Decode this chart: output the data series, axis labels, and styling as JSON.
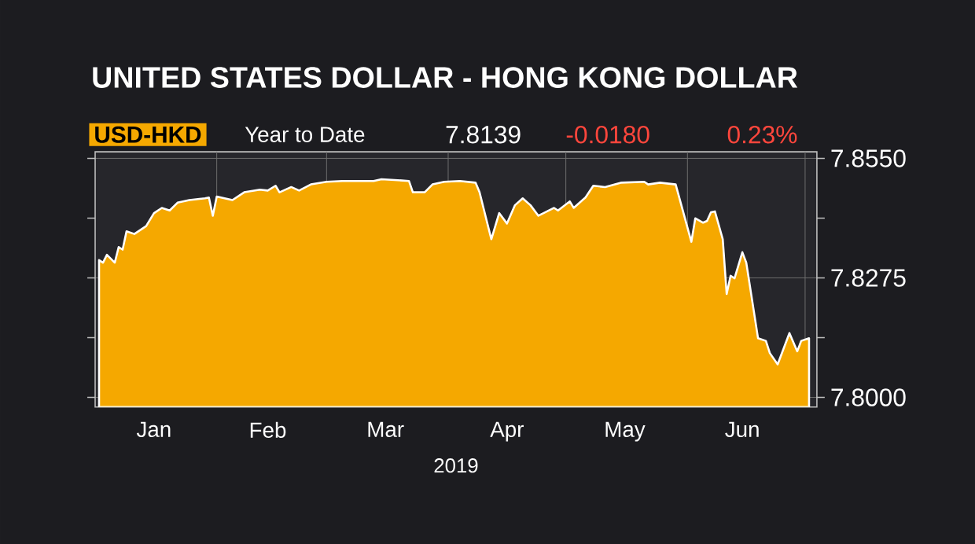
{
  "chart_data": {
    "type": "area",
    "title": "UNITED STATES DOLLAR - HONG KONG DOLLAR",
    "subtitle": "USD-HKD",
    "annotations": [
      "Year to Date",
      "7.8139",
      "-0.0180",
      "0.23%"
    ],
    "xlabel": "2019",
    "x": [
      "2019-01-02",
      "2019-01-03",
      "2019-01-04",
      "2019-01-06",
      "2019-01-07",
      "2019-01-08",
      "2019-01-09",
      "2019-01-11",
      "2019-01-14",
      "2019-01-16",
      "2019-01-18",
      "2019-01-20",
      "2019-01-22",
      "2019-01-25",
      "2019-01-29",
      "2019-01-30",
      "2019-01-31",
      "2019-02-01",
      "2019-02-05",
      "2019-02-08",
      "2019-02-12",
      "2019-02-14",
      "2019-02-16",
      "2019-02-17",
      "2019-02-20",
      "2019-02-22",
      "2019-02-25",
      "2019-03-01",
      "2019-03-05",
      "2019-03-13",
      "2019-03-15",
      "2019-03-22",
      "2019-03-23",
      "2019-03-26",
      "2019-03-28",
      "2019-03-31",
      "2019-04-04",
      "2019-04-08",
      "2019-04-09",
      "2019-04-10",
      "2019-04-12",
      "2019-04-14",
      "2019-04-16",
      "2019-04-18",
      "2019-04-20",
      "2019-04-22",
      "2019-04-24",
      "2019-04-28",
      "2019-04-29",
      "2019-05-02",
      "2019-05-03",
      "2019-05-06",
      "2019-05-08",
      "2019-05-11",
      "2019-05-15",
      "2019-05-21",
      "2019-05-22",
      "2019-05-25",
      "2019-05-29",
      "2019-05-31",
      "2019-06-02",
      "2019-06-03",
      "2019-06-05",
      "2019-06-06",
      "2019-06-07",
      "2019-06-08",
      "2019-06-10",
      "2019-06-11",
      "2019-06-12",
      "2019-06-13",
      "2019-06-15",
      "2019-06-16",
      "2019-06-19",
      "2019-06-21",
      "2019-06-22",
      "2019-06-24",
      "2019-06-27",
      "2019-06-29",
      "2019-06-30",
      "2019-07-02"
    ],
    "series": [
      {
        "color": "#f5a800",
        "values": [
          7.8316,
          7.831,
          7.8328,
          7.831,
          7.8346,
          7.834,
          7.8382,
          7.8376,
          7.8394,
          7.8424,
          7.8436,
          7.843,
          7.8448,
          7.8454,
          7.8458,
          7.846,
          7.8418,
          7.8462,
          7.8454,
          7.8472,
          7.8478,
          7.8476,
          7.8487,
          7.8472,
          7.8484,
          7.8476,
          7.849,
          7.8496,
          7.8498,
          7.8498,
          7.8502,
          7.8498,
          7.8472,
          7.8472,
          7.849,
          7.8496,
          7.8498,
          7.8494,
          7.8472,
          7.8436,
          7.8364,
          7.8424,
          7.84,
          7.8442,
          7.8458,
          7.8442,
          7.8418,
          7.8436,
          7.843,
          7.8451,
          7.8436,
          7.846,
          7.8487,
          7.8484,
          7.8494,
          7.8496,
          7.849,
          7.8494,
          7.849,
          7.8424,
          7.8358,
          7.8412,
          7.8402,
          7.8406,
          7.8426,
          7.8428,
          7.8364,
          7.8238,
          7.828,
          7.8274,
          7.8334,
          7.831,
          7.8136,
          7.813,
          7.8102,
          7.8076,
          7.8148,
          7.8106,
          7.813,
          7.8136
        ]
      }
    ],
    "xlim": [
      "2019-01-01",
      "2019-07-04"
    ],
    "xticks": [
      {
        "value": "2019-01-16",
        "label": "Jan"
      },
      {
        "value": "2019-02-01",
        "label": null
      },
      {
        "value": "2019-02-14",
        "label": "Feb"
      },
      {
        "value": "2019-03-01",
        "label": null
      },
      {
        "value": "2019-03-16",
        "label": "Mar"
      },
      {
        "value": "2019-04-01",
        "label": null
      },
      {
        "value": "2019-04-16",
        "label": "Apr"
      },
      {
        "value": "2019-05-01",
        "label": null
      },
      {
        "value": "2019-05-16",
        "label": "May"
      },
      {
        "value": "2019-06-01",
        "label": null
      },
      {
        "value": "2019-06-15",
        "label": "Jun"
      },
      {
        "value": "2019-07-01",
        "label": null
      }
    ],
    "ylim": [
      7.7978,
      7.8565
    ],
    "yticks": [
      {
        "value": 7.8,
        "label": "7.8000"
      },
      {
        "value": 7.81375,
        "label": null
      },
      {
        "value": 7.8275,
        "label": "7.8275"
      },
      {
        "value": 7.84125,
        "label": null
      },
      {
        "value": 7.855,
        "label": "7.8550"
      }
    ],
    "grid": true,
    "marker": "none",
    "line_style": "solid"
  }
}
